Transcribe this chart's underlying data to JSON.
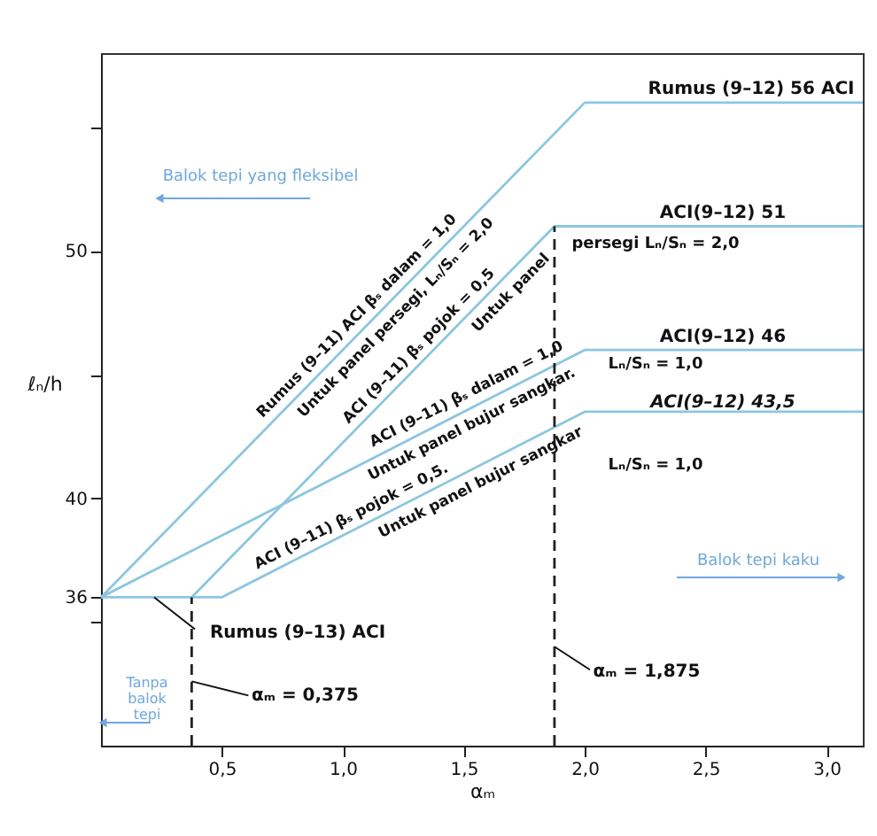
{
  "chart_data": {
    "type": "line",
    "xlabel": "αₘ",
    "ylabel": "ℓₙ/h",
    "xlim": [
      0,
      3.15
    ],
    "ylim": [
      30,
      58
    ],
    "xticks": [
      {
        "value": 0.5,
        "label": "0,5"
      },
      {
        "value": 1.0,
        "label": "1,0"
      },
      {
        "value": 1.5,
        "label": "1,5"
      },
      {
        "value": 2.0,
        "label": "2,0"
      },
      {
        "value": 2.5,
        "label": "2,5"
      },
      {
        "value": 3.0,
        "label": "3,0"
      }
    ],
    "yticks": [
      {
        "value": 35,
        "label": null
      },
      36,
      40,
      {
        "value": 45,
        "label": null
      },
      50,
      {
        "value": 55,
        "label": null
      }
    ],
    "series": [
      {
        "color": "#8cc6e0",
        "x": [
          0,
          2,
          3.15
        ],
        "values": [
          36,
          56,
          56
        ]
      },
      {
        "color": "#8cc6e0",
        "x": [
          0.375,
          1.875,
          3.15
        ],
        "values": [
          36,
          51,
          51
        ]
      },
      {
        "color": "#8cc6e0",
        "x": [
          0,
          2,
          3.15
        ],
        "values": [
          36,
          46,
          46
        ]
      },
      {
        "color": "#8cc6e0",
        "x": [
          0,
          0.5,
          2,
          3.15
        ],
        "values": [
          36,
          36,
          43.5,
          43.5
        ]
      },
      {
        "color": "#222222",
        "x": [
          0.375,
          0.375
        ],
        "values": [
          30,
          36
        ],
        "line_style": "dashed"
      },
      {
        "color": "#222222",
        "x": [
          1.875,
          1.875
        ],
        "values": [
          30,
          51
        ],
        "line_style": "dashed"
      }
    ],
    "annotations": [
      "Rumus (9–12) 56 ACI",
      "ACI(9–12) 51",
      "persegi Lₙ/Sₙ = 2,0",
      "ACI(9–12) 46",
      "Lₙ/Sₙ = 1,0",
      "ACI(9–12) 43,5",
      "Lₙ/Sₙ = 1,0",
      "Rumus (9–11) ACI βₛ dalam = 1,0",
      "Untuk panel persegi, Lₙ/Sₙ = 2,0",
      "ACI (9–11) βₛ pojok = 0,5",
      "Untuk panel",
      "ACI (9–11) βₛ dalam = 1,0",
      "Untuk panel bujur sangkar.",
      "ACI (9–11) βₛ pojok = 0,5.",
      "Untuk panel bujur sangkar",
      {
        "text": "Rumus (9–13) ACI",
        "x": 0.22,
        "y": 36
      },
      {
        "text": "αₘ = 0,375",
        "x": 0.375,
        "y": 32.6
      },
      {
        "text": "αₘ = 1,875",
        "x": 1.875,
        "y": 34
      },
      "Balok tepi yang fleksibel",
      "Balok tepi kaku",
      "Tanpa balok tepi"
    ]
  }
}
